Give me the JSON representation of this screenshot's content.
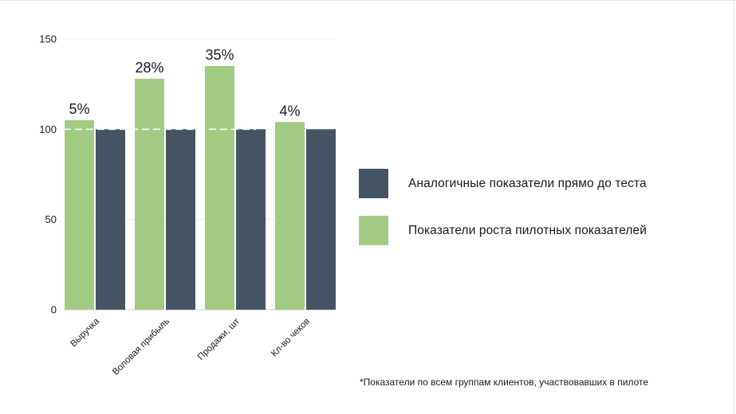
{
  "chart_data": {
    "type": "bar",
    "categories": [
      "Выручка",
      "Воловая прибыль",
      "Продажи, шт",
      "Кл-во чеков"
    ],
    "series": [
      {
        "name": "Показатели роста пилотных показателей",
        "values": [
          105,
          128,
          135,
          104
        ],
        "color": "#a1cb82"
      },
      {
        "name": "Аналогичные показатели прямо до теста",
        "values": [
          100,
          100,
          100,
          100
        ],
        "color": "#445463"
      }
    ],
    "data_labels": [
      "5%",
      "28%",
      "35%",
      "4%"
    ],
    "y_ticks": [
      0,
      50,
      100,
      150
    ],
    "ylim": [
      0,
      150
    ],
    "reference_line": 100,
    "grid": true,
    "legend_position": "right",
    "title": "",
    "xlabel": "",
    "ylabel": ""
  },
  "legend": {
    "items": [
      {
        "label": "Аналогичные показатели прямо до теста",
        "color": "#445463"
      },
      {
        "label": "Показатели роста пилотных показателей",
        "color": "#a1cb82"
      }
    ]
  },
  "footnote": "*Показатели по всем группам клиентов, участвовавших в пилоте"
}
